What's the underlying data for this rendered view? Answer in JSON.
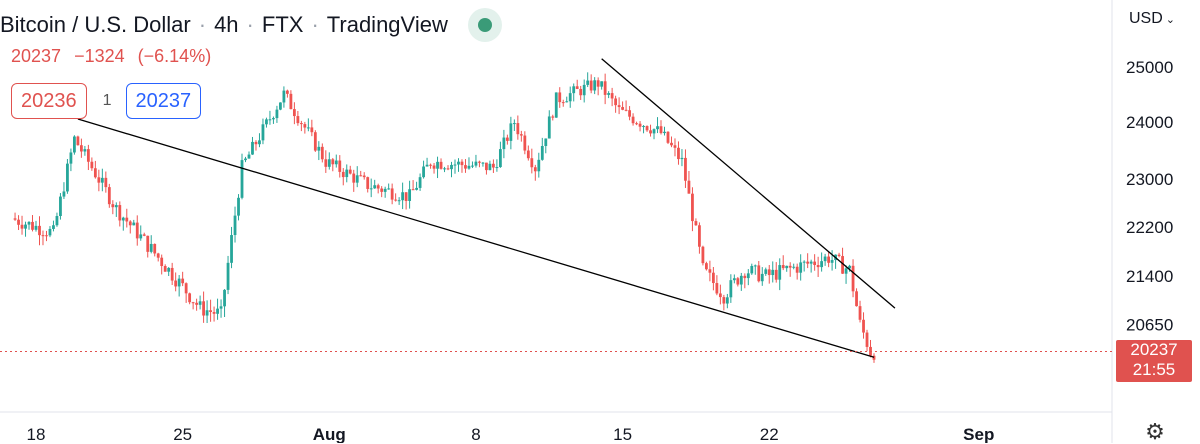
{
  "header": {
    "symbol": "Bitcoin / U.S. Dollar",
    "interval": "4h",
    "exchange": "FTX",
    "source": "TradingView"
  },
  "quote": {
    "last": "20237",
    "change": "−1324",
    "change_pct": "(−6.14%)"
  },
  "order": {
    "sell": "20236",
    "spread": "1",
    "buy": "20237"
  },
  "price_scale": {
    "currency": "USD",
    "current_price": "20237",
    "countdown": "21:55"
  },
  "colors": {
    "up": "#26a69a",
    "down": "#ef5350",
    "trendline": "#000000",
    "price_line": "#e0524f"
  },
  "icons": {
    "status": "status-dot-icon",
    "currency_menu": "chevron-down-icon",
    "settings": "gear-icon"
  },
  "chart_data": {
    "type": "candlestick",
    "symbol": "BTCUSD",
    "interval": "4h",
    "x_ticks": [
      "18",
      "25",
      "Aug",
      "8",
      "15",
      "22",
      "Sep"
    ],
    "x_tick_dates": [
      "2022-07-18",
      "2022-07-25",
      "2022-08-01",
      "2022-08-08",
      "2022-08-15",
      "2022-08-22",
      "2022-09-01"
    ],
    "y_ticks": [
      25000,
      24000,
      23000,
      22200,
      21400,
      20650
    ],
    "y_scale": "log",
    "current_price": 20237,
    "grid": false,
    "key_points": [
      {
        "date": "2022-07-19",
        "price": 22100
      },
      {
        "date": "2022-07-20",
        "price": 23700
      },
      {
        "date": "2022-07-22",
        "price": 22500
      },
      {
        "date": "2022-07-26",
        "price": 20900
      },
      {
        "date": "2022-07-27",
        "price": 20800
      },
      {
        "date": "2022-07-28",
        "price": 23200
      },
      {
        "date": "2022-07-30",
        "price": 24500
      },
      {
        "date": "2022-08-01",
        "price": 23300
      },
      {
        "date": "2022-08-03",
        "price": 22900
      },
      {
        "date": "2022-08-05",
        "price": 22700
      },
      {
        "date": "2022-08-06",
        "price": 23300
      },
      {
        "date": "2022-08-09",
        "price": 23200
      },
      {
        "date": "2022-08-10",
        "price": 24000
      },
      {
        "date": "2022-08-11",
        "price": 23200
      },
      {
        "date": "2022-08-12",
        "price": 24400
      },
      {
        "date": "2022-08-14",
        "price": 24700
      },
      {
        "date": "2022-08-15",
        "price": 24200
      },
      {
        "date": "2022-08-17",
        "price": 23800
      },
      {
        "date": "2022-08-18",
        "price": 23300
      },
      {
        "date": "2022-08-19",
        "price": 21500
      },
      {
        "date": "2022-08-20",
        "price": 21100
      },
      {
        "date": "2022-08-21",
        "price": 21500
      },
      {
        "date": "2022-08-22",
        "price": 21400
      },
      {
        "date": "2022-08-24",
        "price": 21600
      },
      {
        "date": "2022-08-25",
        "price": 21700
      },
      {
        "date": "2022-08-26",
        "price": 21500
      },
      {
        "date": "2022-08-26T12:00",
        "price": 20650
      },
      {
        "date": "2022-08-27",
        "price": 20237
      }
    ],
    "trendlines": [
      {
        "name": "lower",
        "from": {
          "date": "2022-07-20",
          "price": 24050
        },
        "to": {
          "date": "2022-08-27",
          "price": 20150
        }
      },
      {
        "name": "upper",
        "from": {
          "date": "2022-08-14",
          "price": 25150
        },
        "to": {
          "date": "2022-08-28",
          "price": 20900
        }
      }
    ]
  }
}
